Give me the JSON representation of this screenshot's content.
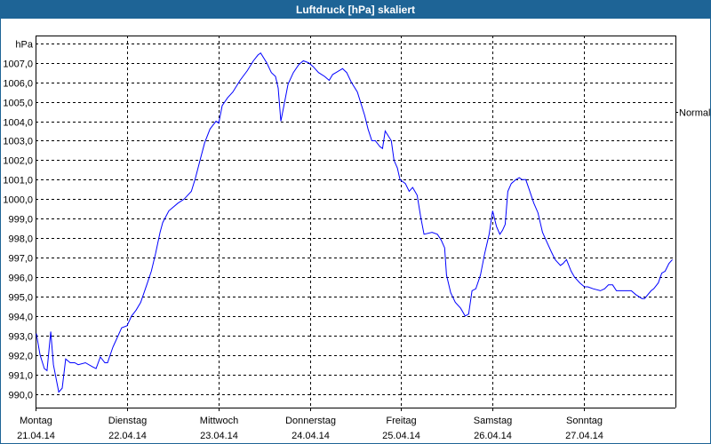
{
  "window": {
    "title": "Luftdruck [hPa] skaliert"
  },
  "chart_data": {
    "type": "line",
    "title": "Luftdruck [hPa] skaliert",
    "ylabel": "hPa",
    "ylim": [
      989.3,
      1008.4
    ],
    "xlim_hours": [
      0,
      168
    ],
    "grid": true,
    "line_color": "#0000ff",
    "yticks": [
      990,
      991,
      992,
      993,
      994,
      995,
      996,
      997,
      998,
      999,
      1000,
      1001,
      1002,
      1003,
      1004,
      1005,
      1006,
      1007
    ],
    "ytick_labels": [
      "990,0",
      "991,0",
      "992,0",
      "993,0",
      "994,0",
      "995,0",
      "996,0",
      "997,0",
      "998,0",
      "999,0",
      "1000,0",
      "1001,0",
      "1002,0",
      "1003,0",
      "1004,0",
      "1005,0",
      "1006,0",
      "1007,0"
    ],
    "xticks": [
      {
        "day": "Montag",
        "date": "21.04.14",
        "hour": 0
      },
      {
        "day": "Dienstag",
        "date": "22.04.14",
        "hour": 24
      },
      {
        "day": "Mittwoch",
        "date": "23.04.14",
        "hour": 48
      },
      {
        "day": "Donnerstag",
        "date": "24.04.14",
        "hour": 72
      },
      {
        "day": "Freitag",
        "date": "25.04.14",
        "hour": 96
      },
      {
        "day": "Samstag",
        "date": "26.04.14",
        "hour": 120
      },
      {
        "day": "Sonntag",
        "date": "27.04.14",
        "hour": 144
      }
    ],
    "reference": {
      "label": "Normal",
      "value": 1004.5
    },
    "series": [
      {
        "x_hours": [
          0.2,
          1.2,
          2.3,
          3.0,
          4.0,
          4.7,
          6.1,
          7.0,
          7.9,
          9.1,
          10.3,
          11.2,
          13.1,
          14.9,
          15.9,
          17.0,
          18.2,
          18.9,
          20.3,
          21.7,
          22.6,
          24.0,
          25.2,
          26.4,
          27.6,
          29.2,
          30.4,
          31.5,
          32.7,
          33.4,
          35.0,
          37.4,
          39.0,
          40.9,
          42.0,
          43.2,
          44.4,
          45.8,
          47.4,
          48.1,
          49.0,
          50.4,
          51.8,
          53.7,
          55.6,
          57.2,
          58.4,
          59.1,
          60.7,
          61.9,
          63.0,
          63.7,
          64.4,
          65.4,
          66.3,
          67.7,
          69.1,
          70.3,
          71.7,
          72.9,
          74.3,
          75.9,
          77.1,
          78.0,
          78.9,
          80.6,
          81.7,
          82.9,
          84.5,
          86.4,
          87.3,
          88.3,
          89.2,
          90.4,
          91.1,
          91.8,
          93.4,
          94.1,
          95.0,
          95.7,
          96.4,
          97.1,
          98.1,
          99.0,
          100.2,
          101.1,
          102.0,
          104.1,
          105.5,
          106.5,
          107.4,
          107.9,
          109.0,
          110.2,
          111.6,
          112.8,
          113.7,
          114.6,
          115.6,
          116.8,
          117.9,
          119.1,
          120.0,
          121.0,
          121.9,
          122.6,
          123.3,
          124.0,
          124.9,
          126.1,
          127.0,
          127.7,
          128.7,
          129.6,
          130.8,
          131.9,
          133.1,
          134.0,
          135.4,
          136.4,
          137.8,
          138.5,
          139.4,
          140.6,
          141.5,
          142.9,
          144.1,
          145.0,
          146.4,
          148.3,
          149.4,
          150.4,
          151.5,
          152.5,
          155.3,
          156.4,
          157.6,
          159.2,
          159.9,
          161.6,
          162.3,
          163.5,
          164.4,
          165.3,
          166.3,
          167.2
        ],
        "values": [
          993.1,
          992.0,
          991.3,
          991.2,
          993.2,
          991.5,
          990.1,
          990.3,
          991.8,
          991.6,
          991.6,
          991.5,
          991.6,
          991.4,
          991.3,
          991.9,
          991.6,
          991.6,
          992.4,
          993.0,
          993.4,
          993.5,
          994.0,
          994.3,
          994.7,
          995.6,
          996.3,
          997.2,
          998.3,
          998.8,
          999.4,
          999.8,
          1000.0,
          1000.4,
          1001.1,
          1002.0,
          1002.9,
          1003.6,
          1004.0,
          1003.9,
          1004.8,
          1005.2,
          1005.5,
          1006.1,
          1006.6,
          1007.1,
          1007.4,
          1007.5,
          1007.0,
          1006.5,
          1006.3,
          1005.7,
          1004.0,
          1005.0,
          1005.9,
          1006.5,
          1006.9,
          1007.1,
          1007.0,
          1006.8,
          1006.5,
          1006.3,
          1006.1,
          1006.4,
          1006.5,
          1006.7,
          1006.5,
          1006.0,
          1005.5,
          1004.3,
          1003.6,
          1003.0,
          1003.0,
          1002.7,
          1002.6,
          1003.5,
          1003.0,
          1002.0,
          1001.6,
          1001.0,
          1000.9,
          1000.8,
          1000.4,
          1000.6,
          1000.2,
          999.1,
          998.2,
          998.3,
          998.2,
          997.9,
          997.5,
          996.1,
          995.2,
          994.7,
          994.4,
          994.0,
          994.1,
          995.3,
          995.4,
          996.1,
          997.2,
          998.2,
          999.4,
          998.6,
          998.2,
          998.4,
          998.7,
          1000.4,
          1000.8,
          1001.0,
          1001.1,
          1001.0,
          1001.0,
          1000.5,
          999.8,
          999.3,
          998.3,
          997.9,
          997.3,
          996.9,
          996.6,
          996.7,
          996.9,
          996.3,
          996.0,
          995.7,
          995.5,
          995.5,
          995.4,
          995.3,
          995.4,
          995.6,
          995.6,
          995.3,
          995.3,
          995.3,
          995.1,
          994.9,
          994.9,
          995.3,
          995.4,
          995.7,
          996.2,
          996.3,
          996.7,
          996.9
        ]
      }
    ]
  }
}
